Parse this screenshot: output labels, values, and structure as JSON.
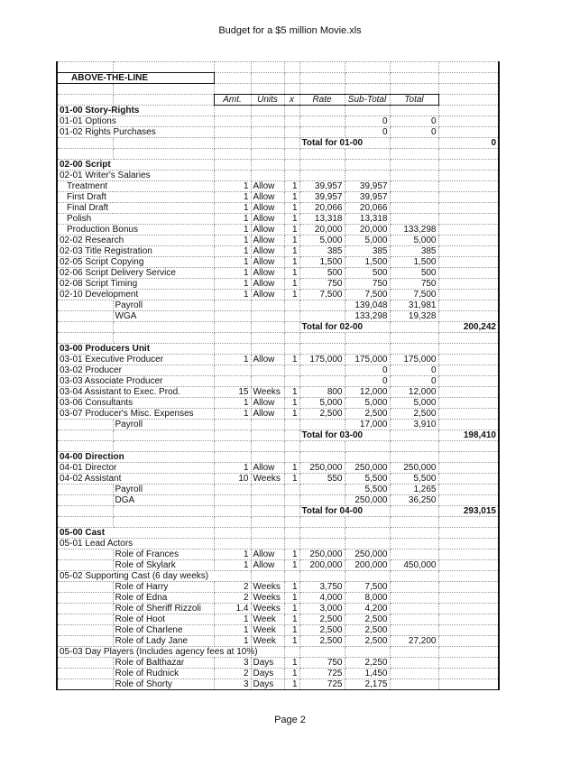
{
  "document": {
    "title": "Budget for a $5 million Movie.xls",
    "footer": "Page 2"
  },
  "section_title": "ABOVE-THE-LINE",
  "headers": [
    "Amt.",
    "Units",
    "x",
    "Rate",
    "Sub-Total",
    "Total"
  ],
  "rows": [
    {
      "kind": "blank"
    },
    {
      "kind": "atl"
    },
    {
      "kind": "blank"
    },
    {
      "kind": "header"
    },
    {
      "kind": "group",
      "label": "01-00 Story-Rights"
    },
    {
      "label": "01-01 Options",
      "sub": "0",
      "total": "0"
    },
    {
      "label": "01-02 Rights Purchases",
      "sub": "0",
      "total": "0"
    },
    {
      "kind": "totalrow",
      "label": "Total for 01-00",
      "grand": "0"
    },
    {
      "kind": "blank"
    },
    {
      "kind": "group",
      "label": "02-00 Script"
    },
    {
      "label": "02-01 Writer's Salaries"
    },
    {
      "label": "Treatment",
      "indent": "sub",
      "amt": "1",
      "units": "Allow",
      "x": "1",
      "rate": "39,957",
      "sub": "39,957"
    },
    {
      "label": "First Draft",
      "indent": "sub",
      "amt": "1",
      "units": "Allow",
      "x": "1",
      "rate": "39,957",
      "sub": "39,957"
    },
    {
      "label": "Final Draft",
      "indent": "sub",
      "amt": "1",
      "units": "Allow",
      "x": "1",
      "rate": "20,066",
      "sub": "20,066"
    },
    {
      "label": "Polish",
      "indent": "sub",
      "amt": "1",
      "units": "Allow",
      "x": "1",
      "rate": "13,318",
      "sub": "13,318"
    },
    {
      "label": "Production Bonus",
      "indent": "sub",
      "amt": "1",
      "units": "Allow",
      "x": "1",
      "rate": "20,000",
      "sub": "20,000",
      "total": "133,298"
    },
    {
      "label": "02-02 Research",
      "amt": "1",
      "units": "Allow",
      "x": "1",
      "rate": "5,000",
      "sub": "5,000",
      "total": "5,000"
    },
    {
      "label": "02-03 Title Registration",
      "amt": "1",
      "units": "Allow",
      "x": "1",
      "rate": "385",
      "sub": "385",
      "total": "385"
    },
    {
      "label": "02-05 Script Copying",
      "amt": "1",
      "units": "Allow",
      "x": "1",
      "rate": "1,500",
      "sub": "1,500",
      "total": "1,500"
    },
    {
      "label": "02-06 Script Delivery Service",
      "amt": "1",
      "units": "Allow",
      "x": "1",
      "rate": "500",
      "sub": "500",
      "total": "500"
    },
    {
      "label": "02-08 Script Timing",
      "amt": "1",
      "units": "Allow",
      "x": "1",
      "rate": "750",
      "sub": "750",
      "total": "750"
    },
    {
      "label": "02-10 Development",
      "amt": "1",
      "units": "Allow",
      "x": "1",
      "rate": "7,500",
      "sub": "7,500",
      "total": "7,500"
    },
    {
      "label": "Payroll",
      "indent": "col",
      "sub": "139,048",
      "total": "31,981"
    },
    {
      "label": "WGA",
      "indent": "col",
      "sub": "133,298",
      "total": "19,328"
    },
    {
      "kind": "totalrow",
      "label": "Total for 02-00",
      "grand": "200,242"
    },
    {
      "kind": "blank"
    },
    {
      "kind": "group",
      "label": "03-00 Producers Unit"
    },
    {
      "label": "03-01 Executive Producer",
      "amt": "1",
      "units": "Allow",
      "x": "1",
      "rate": "175,000",
      "sub": "175,000",
      "total": "175,000"
    },
    {
      "label": "03-02 Producer",
      "sub": "0",
      "total": "0"
    },
    {
      "label": "03-03 Associate Producer",
      "sub": "0",
      "total": "0"
    },
    {
      "label": "03-04 Assistant to Exec. Prod.",
      "amt": "15",
      "units": "Weeks",
      "x": "1",
      "rate": "800",
      "sub": "12,000",
      "total": "12,000"
    },
    {
      "label": "03-06 Consultants",
      "amt": "1",
      "units": "Allow",
      "x": "1",
      "rate": "5,000",
      "sub": "5,000",
      "total": "5,000"
    },
    {
      "label": "03-07 Producer's Misc. Expenses",
      "amt": "1",
      "units": "Allow",
      "x": "1",
      "rate": "2,500",
      "sub": "2,500",
      "total": "2,500"
    },
    {
      "label": "Payroll",
      "indent": "col",
      "sub": "17,000",
      "total": "3,910"
    },
    {
      "kind": "totalrow",
      "label": "Total for 03-00",
      "grand": "198,410"
    },
    {
      "kind": "blank"
    },
    {
      "kind": "group",
      "label": "04-00 Direction"
    },
    {
      "label": "04-01 Director",
      "amt": "1",
      "units": "Allow",
      "x": "1",
      "rate": "250,000",
      "sub": "250,000",
      "total": "250,000"
    },
    {
      "label": "04-02 Assistant",
      "amt": "10",
      "units": "Weeks",
      "x": "1",
      "rate": "550",
      "sub": "5,500",
      "total": "5,500"
    },
    {
      "label": "Payroll",
      "indent": "col",
      "sub": "5,500",
      "total": "1,265"
    },
    {
      "label": "DGA",
      "indent": "col",
      "sub": "250,000",
      "total": "36,250"
    },
    {
      "kind": "totalrow",
      "label": "Total for 04-00",
      "grand": "293,015"
    },
    {
      "kind": "blank"
    },
    {
      "kind": "group",
      "label": "05-00 Cast"
    },
    {
      "label": "05-01 Lead Actors"
    },
    {
      "label": "Role of Frances",
      "indent": "col",
      "amt": "1",
      "units": "Allow",
      "x": "1",
      "rate": "250,000",
      "sub": "250,000"
    },
    {
      "label": "Role of Skylark",
      "indent": "col",
      "amt": "1",
      "units": "Allow",
      "x": "1",
      "rate": "200,000",
      "sub": "200,000",
      "total": "450,000"
    },
    {
      "label": "05-02 Supporting Cast (6 day weeks)",
      "wide": true
    },
    {
      "label": "Role of Harry",
      "indent": "col",
      "amt": "2",
      "units": "Weeks",
      "x": "1",
      "rate": "3,750",
      "sub": "7,500"
    },
    {
      "label": "Role of Edna",
      "indent": "col",
      "amt": "2",
      "units": "Weeks",
      "x": "1",
      "rate": "4,000",
      "sub": "8,000"
    },
    {
      "label": "Role of Sheriff Rizzoli",
      "indent": "col",
      "amt": "1.4",
      "units": "Weeks",
      "x": "1",
      "rate": "3,000",
      "sub": "4,200"
    },
    {
      "label": "Role of Hoot",
      "indent": "col",
      "amt": "1",
      "units": "Week",
      "x": "1",
      "rate": "2,500",
      "sub": "2,500"
    },
    {
      "label": "Role of Charlene",
      "indent": "col",
      "amt": "1",
      "units": "Week",
      "x": "1",
      "rate": "2,500",
      "sub": "2,500"
    },
    {
      "label": "Role of Lady Jane",
      "indent": "col",
      "amt": "1",
      "units": "Week",
      "x": "1",
      "rate": "2,500",
      "sub": "2,500",
      "total": "27,200"
    },
    {
      "label": "05-03 Day Players (Includes agency fees at 10%)",
      "wide": true
    },
    {
      "label": "Role of Balthazar",
      "indent": "col",
      "amt": "3",
      "units": "Days",
      "x": "1",
      "rate": "750",
      "sub": "2,250"
    },
    {
      "label": "Role of Rudnick",
      "indent": "col",
      "amt": "2",
      "units": "Days",
      "x": "1",
      "rate": "725",
      "sub": "1,450"
    },
    {
      "label": "Role of Shorty",
      "indent": "col",
      "amt": "3",
      "units": "Days",
      "x": "1",
      "rate": "725",
      "sub": "2,175"
    }
  ]
}
